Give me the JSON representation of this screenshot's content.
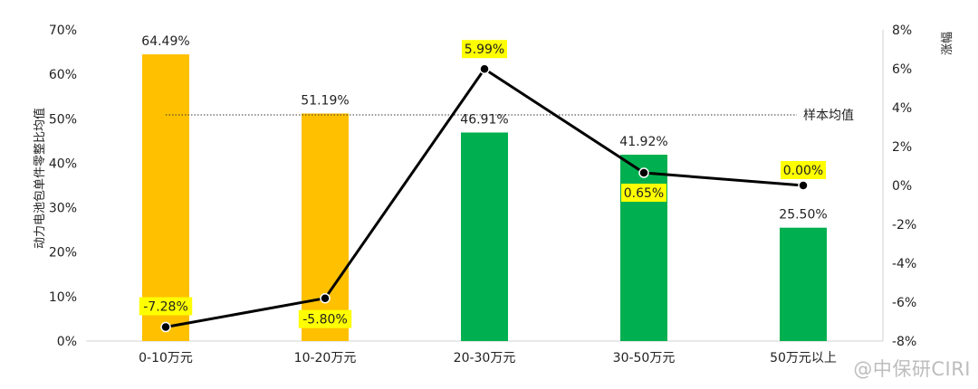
{
  "watermark": "@中保研CIRI",
  "chart_data": {
    "type": "bar",
    "categories": [
      "0-10万元",
      "10-20万元",
      "20-30万元",
      "30-50万元",
      "50万元以上"
    ],
    "bars": {
      "values": [
        64.49,
        51.19,
        46.91,
        41.92,
        25.5
      ],
      "labels": [
        "64.49%",
        "51.19%",
        "46.91%",
        "41.92%",
        "25.50%"
      ],
      "colors": [
        "#FFC000",
        "#FFC000",
        "#00B050",
        "#00B050",
        "#00B050"
      ]
    },
    "line": {
      "values": [
        -7.28,
        -5.8,
        5.99,
        0.65,
        0.0
      ],
      "labels": [
        "-7.28%",
        "-5.80%",
        "5.99%",
        "0.65%",
        "0.00%"
      ],
      "color": "#000000",
      "label_bg": "#FFFF00"
    },
    "reference_line": {
      "label": "样本均值"
    },
    "ylabel_left": "动力电池包单件零整比均值",
    "ylabel_right": "涨幅",
    "ylim_left": [
      0,
      70
    ],
    "yticks_left": [
      "0%",
      "10%",
      "20%",
      "30%",
      "40%",
      "50%",
      "60%",
      "70%"
    ],
    "ylim_right": [
      -8,
      8
    ],
    "yticks_right": [
      "-8%",
      "-6%",
      "-4%",
      "-2%",
      "0%",
      "2%",
      "4%",
      "6%",
      "8%"
    ]
  }
}
